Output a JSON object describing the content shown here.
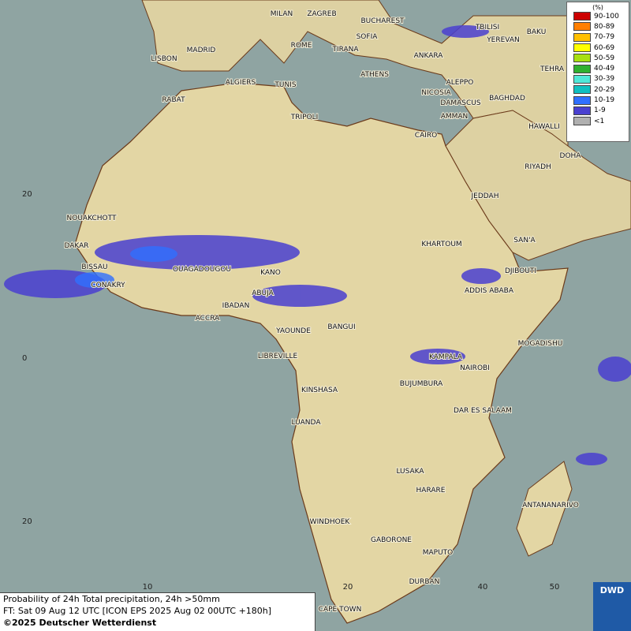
{
  "map": {
    "cities": [
      "MILAN",
      "ZAGREB",
      "BUCHAREST",
      "TBILISI",
      "BAKU",
      "MADRID",
      "ROME",
      "SOFIA",
      "YEREVAN",
      "LISBON",
      "TIRANA",
      "ANKARA",
      "TEHRA",
      "ALGIERS",
      "TUNIS",
      "ATHENS",
      "ALEPPO",
      "RABAT",
      "NICOSIA",
      "BAGHDAD",
      "TRIPOLI",
      "DAMASCUS",
      "AMMAN",
      "HAWALLI",
      "CAIRO",
      "DOHA",
      "RIYADH",
      "JEDDAH",
      "NOUAKCHOTT",
      "DAKAR",
      "KHARTOUM",
      "SAN'A",
      "BISSAU",
      "OUAGADOUGOU",
      "KANO",
      "DJIBOUTI",
      "CONAKRY",
      "ABUJA",
      "ADDIS ABABA",
      "IBADAN",
      "ACCRA",
      "BANGUI",
      "YAOUNDE",
      "MOGADISHU",
      "LIBREVILLE",
      "KAMPALA",
      "NAIROBI",
      "KINSHASA",
      "BUJUMBURA",
      "DAR ES SALAAM",
      "LUANDA",
      "LUSAKA",
      "HARARE",
      "ANTANANARIVO",
      "WINDHOEK",
      "GABORONE",
      "MAPUTO",
      "DURBAN",
      "CAPE TOWN"
    ],
    "lat_labels": [
      "20",
      "0",
      "20"
    ],
    "lon_labels": [
      "10",
      "20",
      "40",
      "50"
    ]
  },
  "legend": {
    "title": "(%)",
    "items": [
      {
        "label": "90-100",
        "color": "#cc0000"
      },
      {
        "label": "80-89",
        "color": "#ff7f00"
      },
      {
        "label": "70-79",
        "color": "#ffc000"
      },
      {
        "label": "60-69",
        "color": "#ffff00"
      },
      {
        "label": "50-59",
        "color": "#a8e010"
      },
      {
        "label": "40-49",
        "color": "#30b030"
      },
      {
        "label": "30-39",
        "color": "#50e8d8"
      },
      {
        "label": "20-29",
        "color": "#10c0c0"
      },
      {
        "label": "10-19",
        "color": "#3070ff"
      },
      {
        "label": "1-9",
        "color": "#4a40d0"
      },
      {
        "label": "<1",
        "color": "#b0b0b0"
      }
    ]
  },
  "footer": {
    "line1": "Probability of 24h Total precipitation, 24h >50mm",
    "line2": "FT: Sat 09 Aug 12 UTC [ICON EPS 2025 Aug 02 00UTC +180h]",
    "line3": "©2025 Deutscher Wetterdienst",
    "logo": "DWD"
  }
}
